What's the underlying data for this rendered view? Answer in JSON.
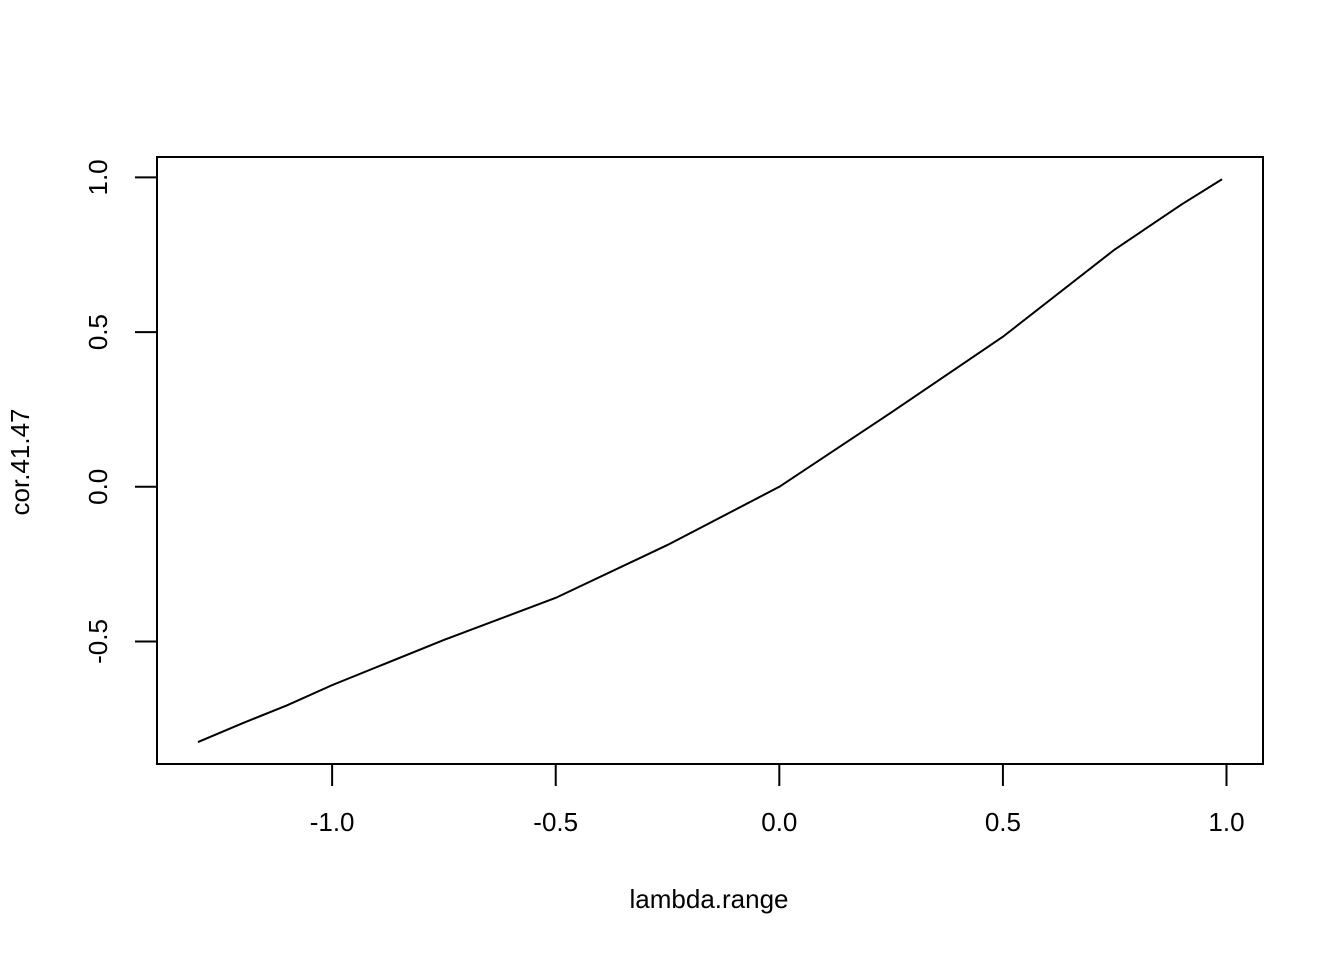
{
  "chart_data": {
    "type": "line",
    "x_label": "lambda.range",
    "y_label": "cor.41.47",
    "x": [
      -1.3,
      -1.2,
      -1.1,
      -1.0,
      -0.75,
      -0.5,
      -0.25,
      0.0,
      0.25,
      0.5,
      0.75,
      0.9,
      0.99
    ],
    "series": [
      {
        "color": "#000000",
        "values": [
          -0.825,
          -0.764,
          -0.706,
          -0.641,
          -0.495,
          -0.359,
          -0.188,
          0.0,
          0.24,
          0.485,
          0.767,
          0.913,
          0.994
        ]
      }
    ],
    "xlim": [
      -1.3916,
      1.0816
    ],
    "ylim": [
      -0.896,
      1.066
    ],
    "xticks": [
      {
        "value": -1.0,
        "label": "-1.0"
      },
      -0.5,
      {
        "value": 0.0,
        "label": "0.0"
      },
      0.5,
      {
        "value": 1.0,
        "label": "1.0"
      }
    ],
    "yticks": [
      -0.5,
      {
        "value": 0.0,
        "label": "0.0"
      },
      0.5,
      {
        "value": 1.0,
        "label": "1.0"
      }
    ]
  }
}
